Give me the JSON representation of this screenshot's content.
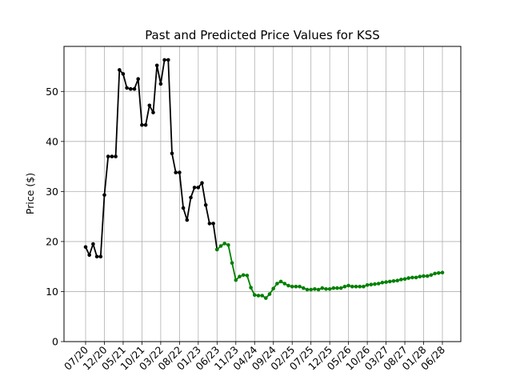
{
  "chart_data": {
    "type": "line",
    "title": "Past and Predicted Price Values for KSS",
    "xlabel": "",
    "ylabel": "Price ($)",
    "ylim": [
      0,
      59
    ],
    "yticks": [
      0,
      10,
      20,
      30,
      40,
      50
    ],
    "x_tick_labels": [
      "07/20",
      "12/20",
      "05/21",
      "10/21",
      "03/22",
      "08/22",
      "01/23",
      "06/23",
      "11/23",
      "04/24",
      "09/24",
      "02/25",
      "07/25",
      "12/25",
      "05/26",
      "10/26",
      "03/27",
      "08/27",
      "01/28",
      "06/28"
    ],
    "grid": true,
    "legend": "none",
    "series": [
      {
        "color": "#000000",
        "x": [
          "2020-07",
          "2020-08",
          "2020-09",
          "2020-10",
          "2020-11",
          "2020-12",
          "2021-01",
          "2021-02",
          "2021-03",
          "2021-04",
          "2021-05",
          "2021-06",
          "2021-07",
          "2021-08",
          "2021-09",
          "2021-10",
          "2021-11",
          "2021-12",
          "2022-01",
          "2022-02",
          "2022-03",
          "2022-04",
          "2022-05",
          "2022-06",
          "2022-07",
          "2022-08",
          "2022-09",
          "2022-10",
          "2022-11",
          "2022-12",
          "2023-01",
          "2023-02",
          "2023-03",
          "2023-04",
          "2023-05",
          "2023-06"
        ],
        "values": [
          18.9,
          17.3,
          19.5,
          17.0,
          17.0,
          29.3,
          37.0,
          37.0,
          37.0,
          54.3,
          53.5,
          50.7,
          50.5,
          50.5,
          52.5,
          43.3,
          43.3,
          47.2,
          45.8,
          55.2,
          51.5,
          56.3,
          56.3,
          37.6,
          33.8,
          33.8,
          26.7,
          24.3,
          28.8,
          30.8,
          30.8,
          31.7,
          27.3,
          23.6,
          23.6,
          18.4
        ]
      },
      {
        "color": "#008000",
        "x": [
          "2023-06",
          "2023-07",
          "2023-08",
          "2023-09",
          "2023-10",
          "2023-11",
          "2023-12",
          "2024-01",
          "2024-02",
          "2024-03",
          "2024-04",
          "2024-05",
          "2024-06",
          "2024-07",
          "2024-08",
          "2024-09",
          "2024-10",
          "2024-11",
          "2024-12",
          "2025-01",
          "2025-02",
          "2025-03",
          "2025-04",
          "2025-05",
          "2025-06",
          "2025-07",
          "2025-08",
          "2025-09",
          "2025-10",
          "2025-11",
          "2025-12",
          "2026-01",
          "2026-02",
          "2026-03",
          "2026-04",
          "2026-05",
          "2026-06",
          "2026-07",
          "2026-08",
          "2026-09",
          "2026-10",
          "2026-11",
          "2026-12",
          "2027-01",
          "2027-02",
          "2027-03",
          "2027-04",
          "2027-05",
          "2027-06",
          "2027-07",
          "2027-08",
          "2027-09",
          "2027-10",
          "2027-11",
          "2027-12",
          "2028-01",
          "2028-02",
          "2028-03",
          "2028-04",
          "2028-05",
          "2028-06"
        ],
        "values": [
          18.4,
          19.1,
          19.6,
          19.3,
          15.7,
          12.3,
          13.0,
          13.3,
          13.2,
          10.8,
          9.3,
          9.2,
          9.2,
          8.7,
          9.5,
          10.6,
          11.6,
          12.0,
          11.6,
          11.2,
          11.0,
          11.0,
          11.0,
          10.7,
          10.4,
          10.4,
          10.5,
          10.4,
          10.7,
          10.5,
          10.5,
          10.7,
          10.7,
          10.7,
          11.0,
          11.2,
          11.0,
          11.0,
          11.0,
          11.0,
          11.3,
          11.4,
          11.5,
          11.6,
          11.8,
          11.9,
          12.0,
          12.1,
          12.2,
          12.4,
          12.5,
          12.7,
          12.8,
          12.8,
          13.0,
          13.1,
          13.1,
          13.3,
          13.6,
          13.7,
          13.8
        ]
      }
    ]
  }
}
